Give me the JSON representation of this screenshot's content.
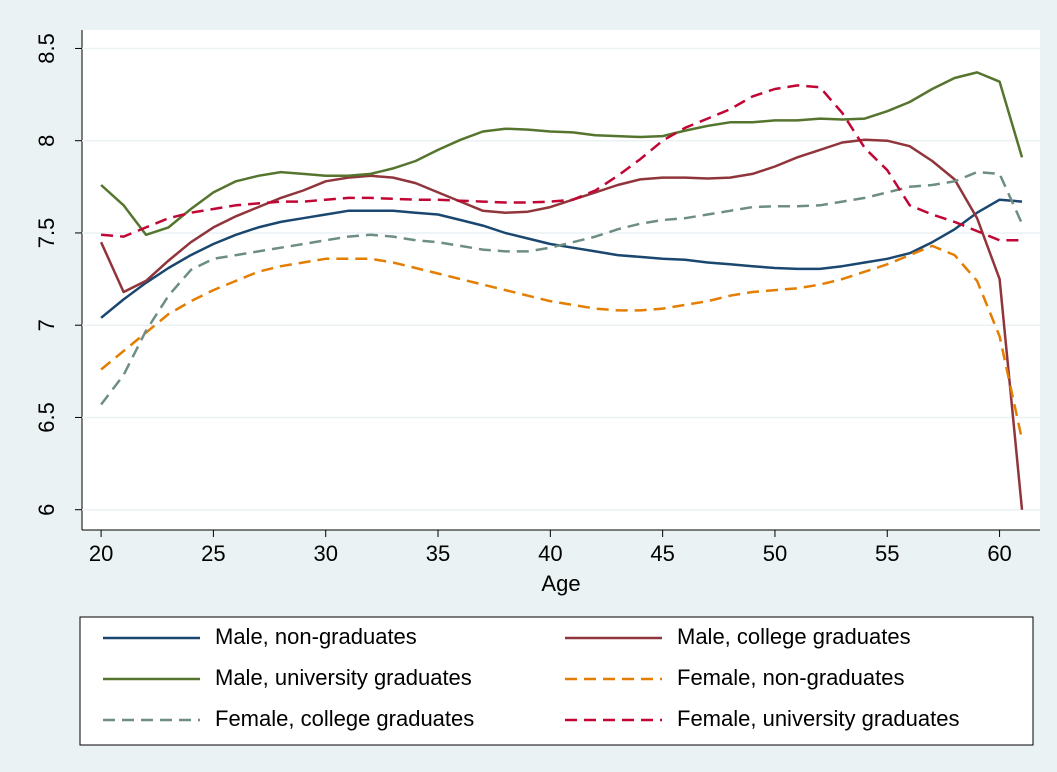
{
  "chart_data": {
    "type": "line",
    "x_label": "Age",
    "x": [
      20,
      21,
      22,
      23,
      24,
      25,
      26,
      27,
      28,
      29,
      30,
      31,
      32,
      33,
      34,
      35,
      36,
      37,
      38,
      39,
      40,
      41,
      42,
      43,
      44,
      45,
      46,
      47,
      48,
      49,
      50,
      51,
      52,
      53,
      54,
      55,
      56,
      57,
      58,
      59,
      60,
      61
    ],
    "xlim": [
      19.15,
      61.8
    ],
    "xticks": [
      20,
      25,
      30,
      35,
      40,
      45,
      50,
      55,
      60
    ],
    "ylim": [
      5.89,
      8.6
    ],
    "yticks": [
      6,
      6.5,
      7,
      7.5,
      8,
      8.5
    ],
    "grid": true,
    "legend": "bottom",
    "series": [
      {
        "name": "Male, non-graduates",
        "color": "#1a476f",
        "style": "solid",
        "values": [
          7.04,
          7.14,
          7.23,
          7.31,
          7.38,
          7.44,
          7.49,
          7.53,
          7.56,
          7.58,
          7.6,
          7.62,
          7.62,
          7.62,
          7.61,
          7.6,
          7.57,
          7.54,
          7.5,
          7.47,
          7.44,
          7.42,
          7.4,
          7.38,
          7.37,
          7.36,
          7.355,
          7.34,
          7.33,
          7.32,
          7.31,
          7.305,
          7.305,
          7.32,
          7.34,
          7.36,
          7.39,
          7.45,
          7.52,
          7.61,
          7.68,
          7.67
        ]
      },
      {
        "name": "Male, college graduates",
        "color": "#90353b",
        "style": "solid",
        "values": [
          7.45,
          7.18,
          7.24,
          7.35,
          7.45,
          7.53,
          7.59,
          7.64,
          7.69,
          7.73,
          7.78,
          7.8,
          7.81,
          7.8,
          7.77,
          7.72,
          7.67,
          7.62,
          7.61,
          7.615,
          7.64,
          7.68,
          7.72,
          7.76,
          7.79,
          7.8,
          7.8,
          7.795,
          7.8,
          7.82,
          7.86,
          7.91,
          7.95,
          7.99,
          8.005,
          8.0,
          7.97,
          7.89,
          7.79,
          7.58,
          7.25,
          6.0
        ]
      },
      {
        "name": "Male, university graduates",
        "color": "#55752f",
        "style": "solid",
        "values": [
          7.76,
          7.65,
          7.49,
          7.53,
          7.63,
          7.72,
          7.78,
          7.81,
          7.83,
          7.82,
          7.81,
          7.81,
          7.82,
          7.85,
          7.89,
          7.95,
          8.005,
          8.05,
          8.065,
          8.06,
          8.05,
          8.045,
          8.03,
          8.025,
          8.02,
          8.025,
          8.055,
          8.08,
          8.1,
          8.1,
          8.11,
          8.11,
          8.12,
          8.115,
          8.12,
          8.16,
          8.21,
          8.28,
          8.34,
          8.37,
          8.32,
          7.91
        ]
      },
      {
        "name": "Female, non-graduates",
        "color": "#e37e00",
        "style": "dashed",
        "values": [
          6.76,
          6.86,
          6.96,
          7.06,
          7.13,
          7.19,
          7.24,
          7.29,
          7.32,
          7.34,
          7.36,
          7.36,
          7.36,
          7.34,
          7.31,
          7.28,
          7.25,
          7.22,
          7.19,
          7.16,
          7.13,
          7.11,
          7.09,
          7.08,
          7.08,
          7.09,
          7.11,
          7.13,
          7.16,
          7.18,
          7.19,
          7.2,
          7.22,
          7.25,
          7.29,
          7.33,
          7.38,
          7.43,
          7.38,
          7.24,
          6.94,
          6.38
        ]
      },
      {
        "name": "Female, college graduates",
        "color": "#6e8e84",
        "style": "dashed",
        "values": [
          6.57,
          6.73,
          6.97,
          7.16,
          7.3,
          7.36,
          7.38,
          7.4,
          7.42,
          7.44,
          7.46,
          7.48,
          7.49,
          7.48,
          7.46,
          7.45,
          7.43,
          7.41,
          7.4,
          7.4,
          7.42,
          7.45,
          7.48,
          7.52,
          7.55,
          7.57,
          7.58,
          7.6,
          7.62,
          7.64,
          7.645,
          7.645,
          7.65,
          7.67,
          7.69,
          7.72,
          7.75,
          7.76,
          7.78,
          7.83,
          7.82,
          7.55
        ]
      },
      {
        "name": "Female, university graduates",
        "color": "#c10534",
        "style": "dashed",
        "values": [
          7.49,
          7.48,
          7.53,
          7.58,
          7.61,
          7.63,
          7.65,
          7.66,
          7.67,
          7.67,
          7.68,
          7.69,
          7.69,
          7.685,
          7.68,
          7.68,
          7.675,
          7.67,
          7.665,
          7.665,
          7.67,
          7.68,
          7.73,
          7.81,
          7.9,
          8.0,
          8.07,
          8.12,
          8.17,
          8.24,
          8.28,
          8.3,
          8.29,
          8.15,
          7.96,
          7.84,
          7.65,
          7.6,
          7.56,
          7.51,
          7.46,
          7.46
        ]
      }
    ]
  }
}
